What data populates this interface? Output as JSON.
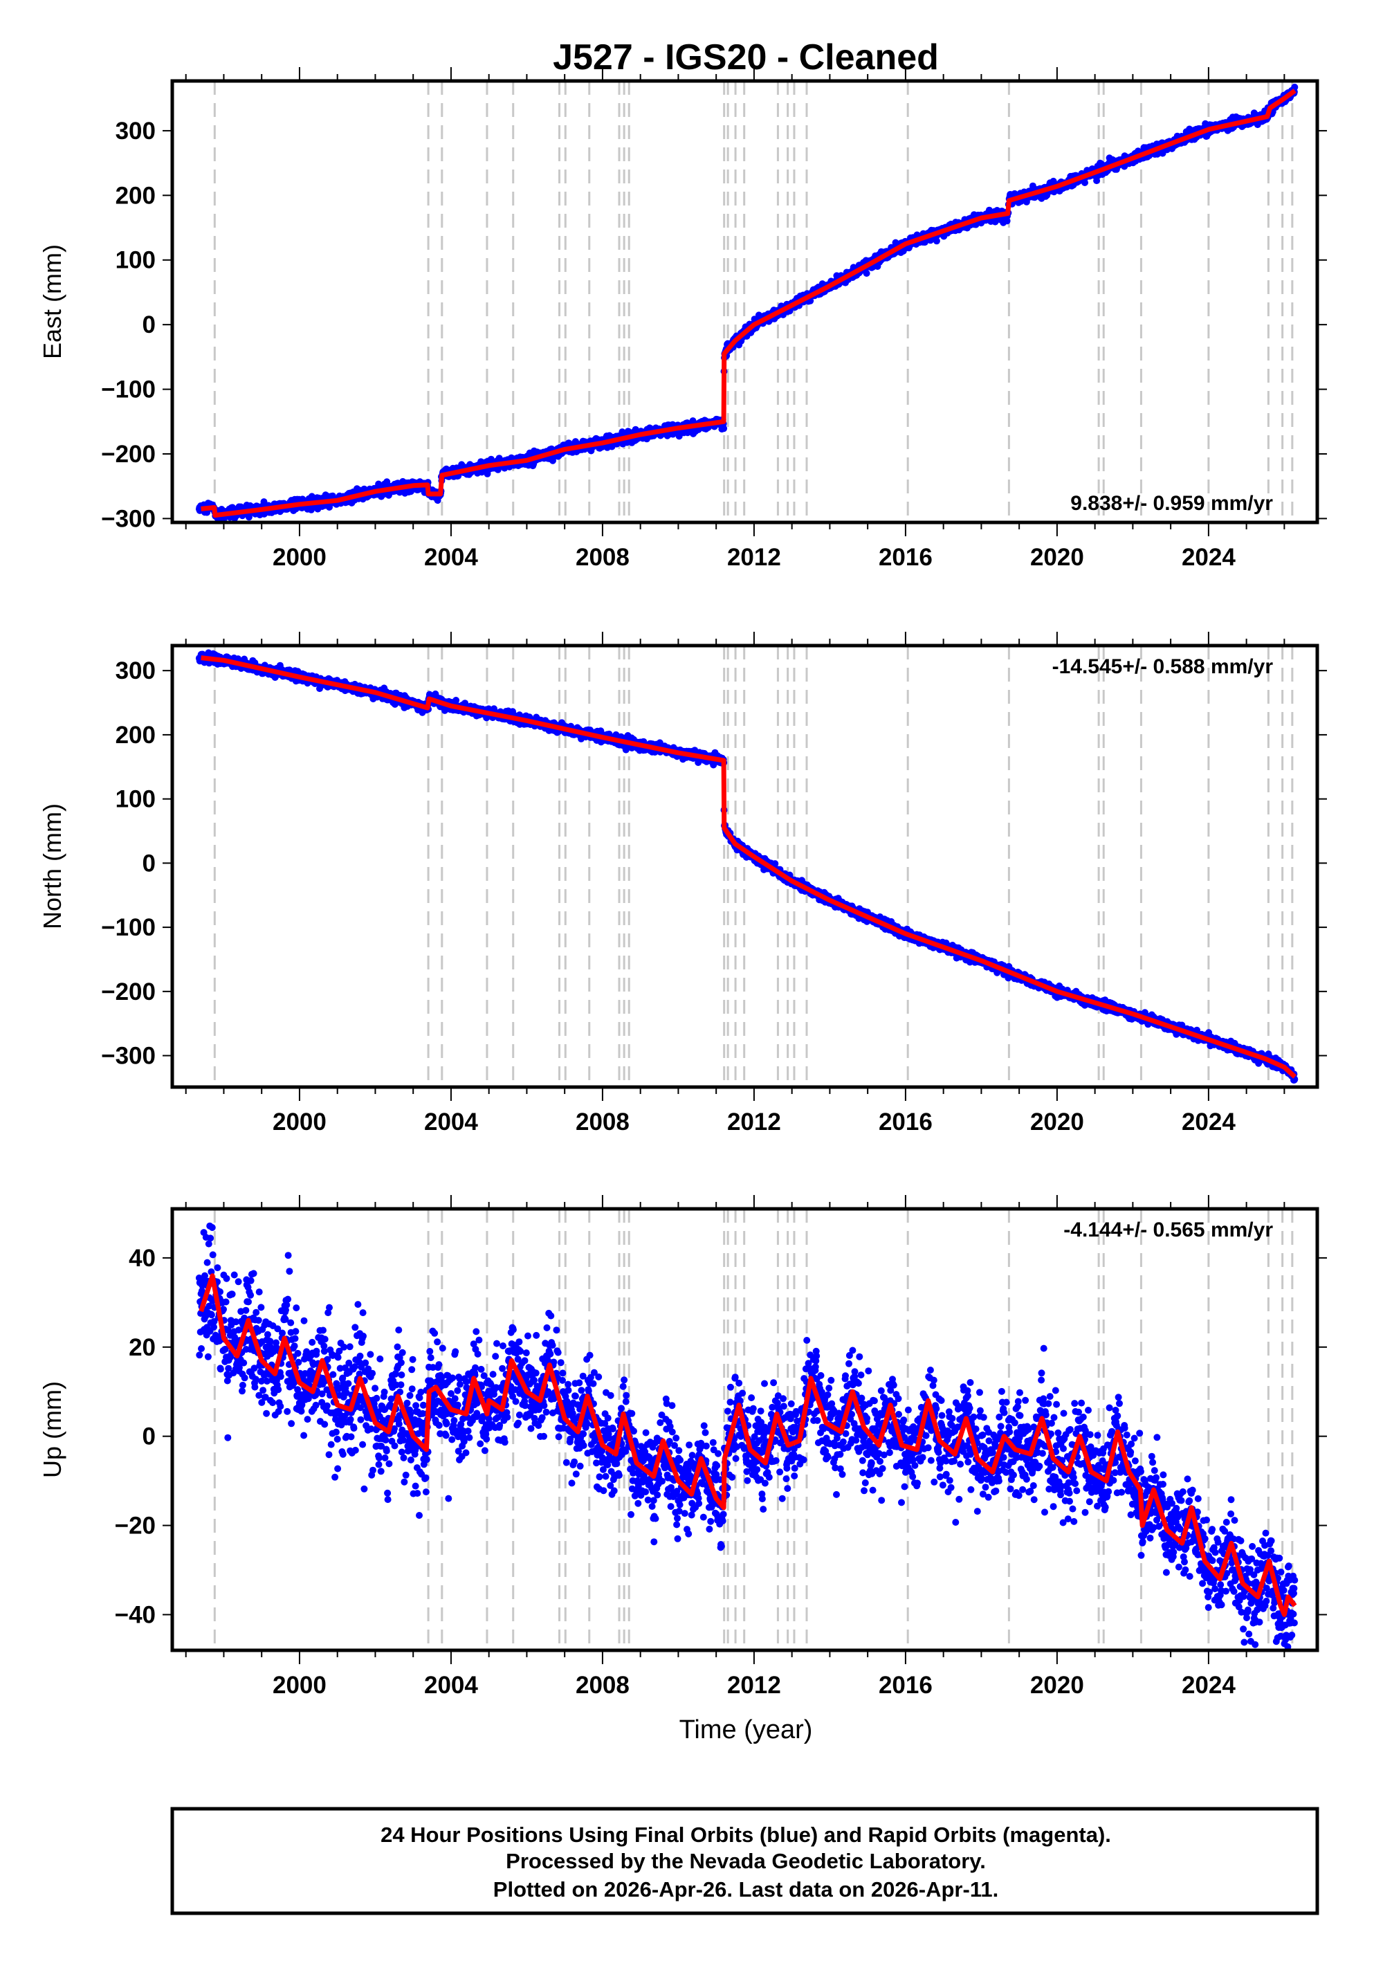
{
  "chart_data": {
    "type": "scatter",
    "title": "J527  - IGS20 - Cleaned",
    "xlabel": "Time (year)",
    "xlim": [
      1996.64,
      2026.87
    ],
    "xticks": [
      2000,
      2004,
      2008,
      2012,
      2016,
      2020,
      2024
    ],
    "xtick_labels": [
      "2000",
      "2004",
      "2008",
      "2012",
      "2016",
      "2020",
      "2024"
    ],
    "event_lines": [
      1997.76,
      2003.4,
      2003.76,
      2004.95,
      2005.64,
      2006.86,
      2007.02,
      2007.65,
      2008.44,
      2008.57,
      2008.7,
      2011.21,
      2011.31,
      2011.51,
      2011.74,
      2012.63,
      2012.89,
      2013.06,
      2013.39,
      2016.06,
      2018.73,
      2021.1,
      2021.23,
      2022.22,
      2024.0,
      2025.58,
      2025.95,
      2026.21
    ],
    "data_span": [
      1997.35,
      2026.28
    ],
    "colors": {
      "data": "#0000ff",
      "fit": "#ff0000",
      "event": "#c8c8c8",
      "frame": "#000000"
    },
    "panels": [
      {
        "name": "east",
        "ylabel": "East (mm)",
        "ylim": [
          -306,
          377
        ],
        "yticks": [
          -300,
          -200,
          -100,
          0,
          100,
          200,
          300
        ],
        "ytick_labels": [
          "−300",
          "−200",
          "−100",
          "0",
          "100",
          "200",
          "300"
        ],
        "rate": "9.838+/- 0.959 mm/yr",
        "rate_position": "bottom-right",
        "scatter_std_mm": 4,
        "fit": [
          [
            1997.4,
            -285
          ],
          [
            1997.75,
            -283
          ],
          [
            1997.77,
            -295
          ],
          [
            1999,
            -286
          ],
          [
            2000,
            -278
          ],
          [
            2001,
            -272
          ],
          [
            2002,
            -258
          ],
          [
            2003,
            -249
          ],
          [
            2003.38,
            -248
          ],
          [
            2003.4,
            -262
          ],
          [
            2003.72,
            -262
          ],
          [
            2003.76,
            -233
          ],
          [
            2005,
            -218
          ],
          [
            2006,
            -210
          ],
          [
            2007,
            -193
          ],
          [
            2008,
            -183
          ],
          [
            2009,
            -170
          ],
          [
            2010,
            -160
          ],
          [
            2011.2,
            -150
          ],
          [
            2011.21,
            -45
          ],
          [
            2011.5,
            -25
          ],
          [
            2012,
            0
          ],
          [
            2013,
            30
          ],
          [
            2014,
            60
          ],
          [
            2015,
            92
          ],
          [
            2016,
            125
          ],
          [
            2017,
            145
          ],
          [
            2018,
            165
          ],
          [
            2018.7,
            172
          ],
          [
            2018.73,
            192
          ],
          [
            2020,
            214
          ],
          [
            2021.2,
            240
          ],
          [
            2022.2,
            262
          ],
          [
            2023,
            280
          ],
          [
            2024,
            302
          ],
          [
            2025.55,
            322
          ],
          [
            2025.62,
            335
          ],
          [
            2026,
            350
          ],
          [
            2026.28,
            362
          ]
        ]
      },
      {
        "name": "north",
        "ylabel": "North (mm)",
        "ylim": [
          -349,
          339
        ],
        "yticks": [
          -300,
          -200,
          -100,
          0,
          100,
          200,
          300
        ],
        "ytick_labels": [
          "−300",
          "−200",
          "−100",
          "0",
          "100",
          "200",
          "300"
        ],
        "rate": "-14.545+/- 0.588 mm/yr",
        "rate_position": "top-right",
        "scatter_std_mm": 3.5,
        "fit": [
          [
            1997.4,
            320
          ],
          [
            1998,
            316
          ],
          [
            2000,
            290
          ],
          [
            2002,
            266
          ],
          [
            2003.38,
            242
          ],
          [
            2003.42,
            256
          ],
          [
            2004,
            245
          ],
          [
            2006,
            222
          ],
          [
            2008,
            196
          ],
          [
            2010,
            172
          ],
          [
            2011.2,
            160
          ],
          [
            2011.21,
            55
          ],
          [
            2011.5,
            30
          ],
          [
            2012,
            10
          ],
          [
            2013,
            -28
          ],
          [
            2014,
            -58
          ],
          [
            2016,
            -110
          ],
          [
            2018,
            -152
          ],
          [
            2020,
            -200
          ],
          [
            2022,
            -235
          ],
          [
            2024,
            -275
          ],
          [
            2025.5,
            -305
          ],
          [
            2026,
            -318
          ],
          [
            2026.28,
            -333
          ]
        ]
      },
      {
        "name": "up",
        "ylabel": "Up (mm)",
        "ylim": [
          -48,
          51
        ],
        "yticks": [
          -40,
          -20,
          0,
          20,
          40
        ],
        "ytick_labels": [
          "−40",
          "−20",
          "0",
          "20",
          "40"
        ],
        "rate": "-4.144+/- 0.565 mm/yr",
        "rate_position": "top-right",
        "scatter_std_mm": 5,
        "fit": [
          [
            1997.4,
            28
          ],
          [
            1997.7,
            36
          ],
          [
            1998.0,
            22
          ],
          [
            1998.35,
            18
          ],
          [
            1998.65,
            26
          ],
          [
            1999.0,
            17
          ],
          [
            1999.35,
            14
          ],
          [
            1999.6,
            22
          ],
          [
            2000.0,
            12
          ],
          [
            2000.35,
            10
          ],
          [
            2000.6,
            17
          ],
          [
            2001.0,
            7
          ],
          [
            2001.35,
            6
          ],
          [
            2001.6,
            13
          ],
          [
            2002.0,
            3
          ],
          [
            2002.35,
            1
          ],
          [
            2002.6,
            9
          ],
          [
            2003.0,
            0
          ],
          [
            2003.35,
            -3
          ],
          [
            2003.42,
            10
          ],
          [
            2003.6,
            11
          ],
          [
            2004.0,
            6
          ],
          [
            2004.4,
            5
          ],
          [
            2004.6,
            13
          ],
          [
            2004.95,
            5
          ],
          [
            2005.0,
            8
          ],
          [
            2005.35,
            6
          ],
          [
            2005.6,
            17
          ],
          [
            2006.0,
            10
          ],
          [
            2006.35,
            8
          ],
          [
            2006.6,
            16
          ],
          [
            2007.0,
            4
          ],
          [
            2007.35,
            1
          ],
          [
            2007.6,
            9
          ],
          [
            2008.0,
            -2
          ],
          [
            2008.35,
            -4
          ],
          [
            2008.55,
            5
          ],
          [
            2008.9,
            -6
          ],
          [
            2009.35,
            -9
          ],
          [
            2009.6,
            -1
          ],
          [
            2010.0,
            -10
          ],
          [
            2010.35,
            -13
          ],
          [
            2010.6,
            -5
          ],
          [
            2011.0,
            -14
          ],
          [
            2011.2,
            -16
          ],
          [
            2011.22,
            -5
          ],
          [
            2011.35,
            -1
          ],
          [
            2011.6,
            7
          ],
          [
            2011.9,
            -3
          ],
          [
            2012.3,
            -6
          ],
          [
            2012.6,
            5
          ],
          [
            2012.9,
            -2
          ],
          [
            2013.2,
            -1
          ],
          [
            2013.5,
            13
          ],
          [
            2013.9,
            3
          ],
          [
            2014.3,
            1
          ],
          [
            2014.6,
            10
          ],
          [
            2014.9,
            2
          ],
          [
            2015.3,
            -2
          ],
          [
            2015.6,
            7
          ],
          [
            2015.9,
            -2
          ],
          [
            2016.3,
            -3
          ],
          [
            2016.6,
            8
          ],
          [
            2016.9,
            -1
          ],
          [
            2017.3,
            -4
          ],
          [
            2017.6,
            4
          ],
          [
            2017.9,
            -5
          ],
          [
            2018.3,
            -8
          ],
          [
            2018.6,
            0
          ],
          [
            2018.9,
            -3
          ],
          [
            2019.3,
            -4
          ],
          [
            2019.6,
            4
          ],
          [
            2019.9,
            -5
          ],
          [
            2020.3,
            -8
          ],
          [
            2020.6,
            0
          ],
          [
            2020.9,
            -8
          ],
          [
            2021.3,
            -10
          ],
          [
            2021.6,
            1
          ],
          [
            2021.9,
            -8
          ],
          [
            2022.2,
            -12
          ],
          [
            2022.25,
            -20
          ],
          [
            2022.55,
            -12
          ],
          [
            2022.9,
            -21
          ],
          [
            2023.3,
            -24
          ],
          [
            2023.55,
            -16
          ],
          [
            2023.9,
            -28
          ],
          [
            2024.3,
            -32
          ],
          [
            2024.6,
            -24
          ],
          [
            2024.9,
            -33
          ],
          [
            2025.3,
            -36
          ],
          [
            2025.6,
            -28
          ],
          [
            2025.9,
            -38
          ],
          [
            2026.0,
            -40
          ],
          [
            2026.1,
            -36
          ],
          [
            2026.28,
            -38
          ]
        ]
      }
    ]
  },
  "footer": {
    "line1": "24 Hour Positions Using Final Orbits (blue) and Rapid Orbits (magenta).",
    "line2": "Processed by the Nevada Geodetic Laboratory.",
    "line3": "Plotted on 2026-Apr-26. Last data on 2026-Apr-11."
  }
}
